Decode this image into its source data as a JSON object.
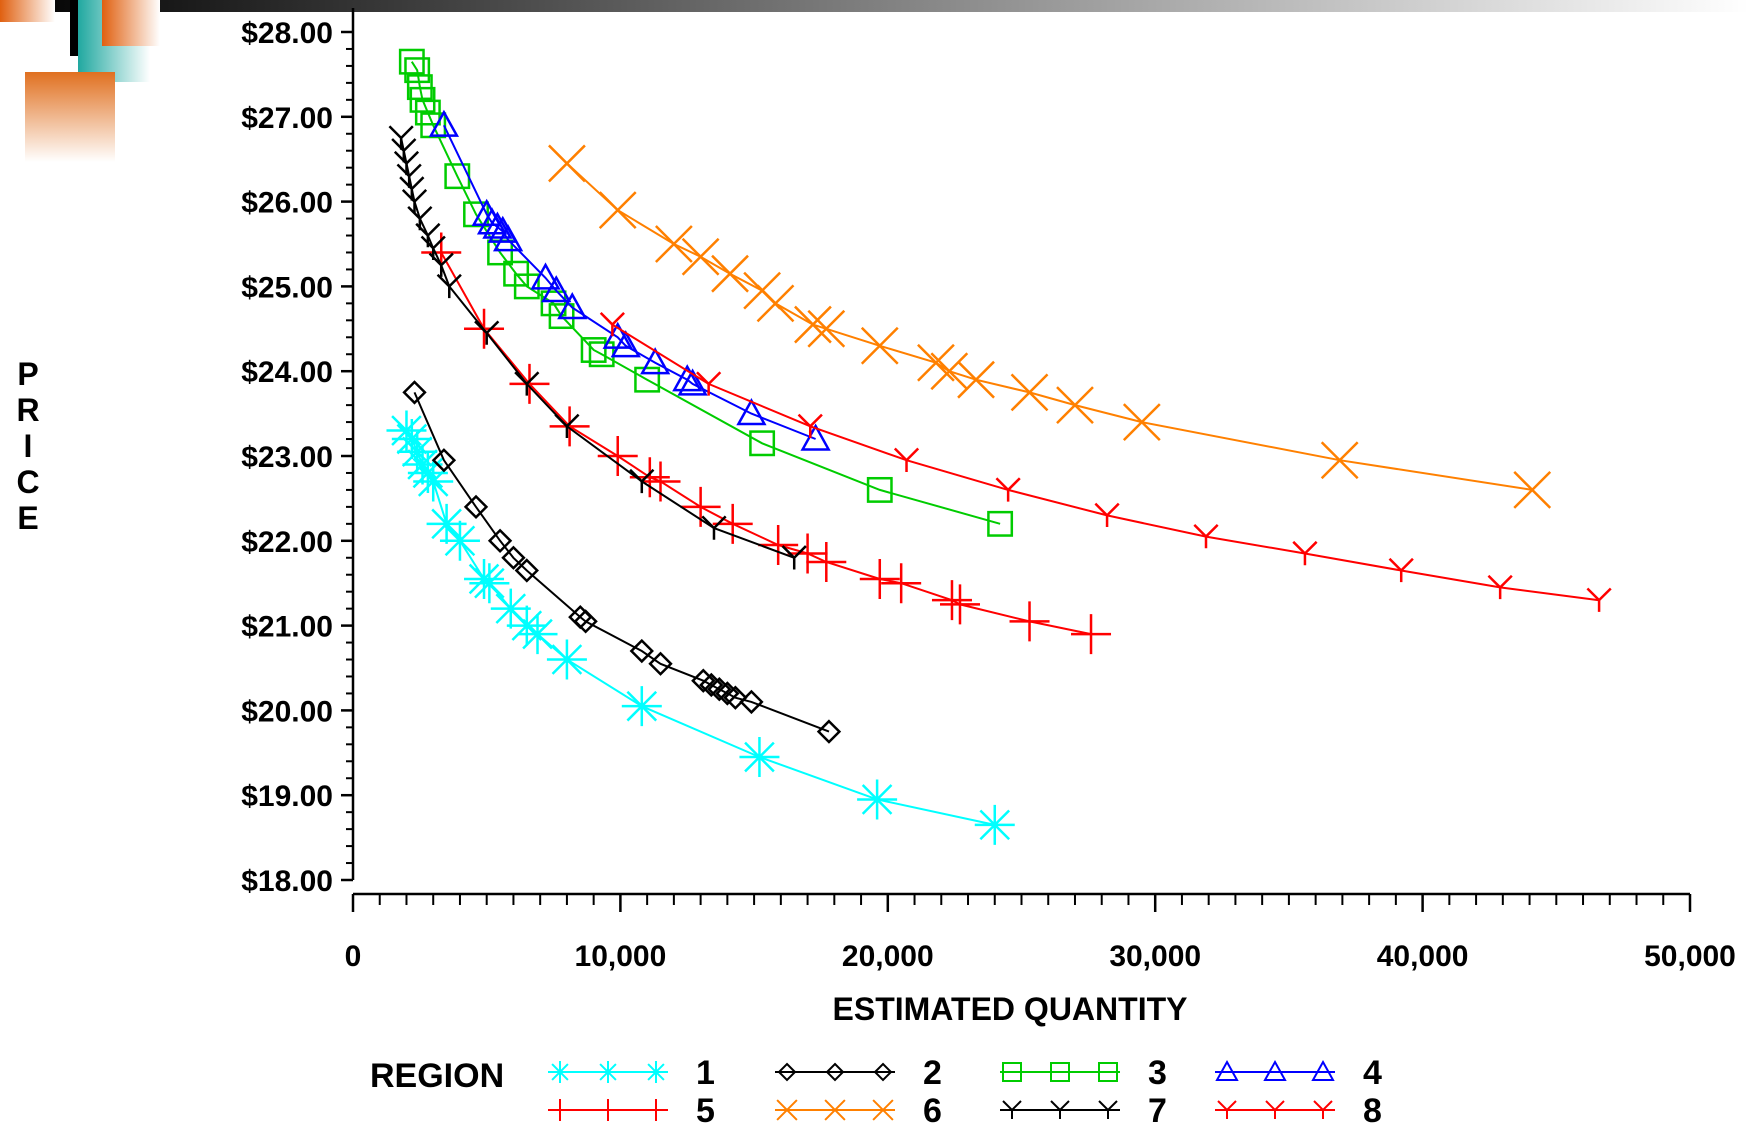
{
  "chart_data": {
    "type": "line",
    "title": "",
    "xlabel": "ESTIMATED QUANTITY",
    "ylabel": "PRICE",
    "xlim": [
      0,
      50000
    ],
    "ylim": [
      18,
      28
    ],
    "xticks": [
      0,
      10000,
      20000,
      30000,
      40000,
      50000
    ],
    "xtick_labels": [
      "0",
      "10,000",
      "20,000",
      "30,000",
      "40,000",
      "50,000"
    ],
    "yticks": [
      18,
      19,
      20,
      21,
      22,
      23,
      24,
      25,
      26,
      27,
      28
    ],
    "ytick_labels": [
      "$18.00",
      "$19.00",
      "$20.00",
      "$21.00",
      "$22.00",
      "$23.00",
      "$24.00",
      "$25.00",
      "$26.00",
      "$27.00",
      "$28.00"
    ],
    "grid": false,
    "legend": {
      "title": "REGION",
      "placement": "bottom"
    },
    "series": [
      {
        "name": "1",
        "color": "#00FFFF",
        "marker": "asterisk",
        "x": [
          2000,
          2200,
          2400,
          2600,
          2800,
          3000,
          3500,
          4000,
          4900,
          5100,
          5900,
          6500,
          6900,
          8000,
          10800,
          15200,
          19600,
          24000
        ],
        "y": [
          23.3,
          23.2,
          23.05,
          22.9,
          22.8,
          22.7,
          22.2,
          22.0,
          21.55,
          21.5,
          21.2,
          21.0,
          20.9,
          20.6,
          20.05,
          19.45,
          18.95,
          18.65
        ]
      },
      {
        "name": "2",
        "color": "#000000",
        "marker": "diamond",
        "x": [
          2300,
          3400,
          4600,
          5500,
          6000,
          6500,
          8500,
          8700,
          10800,
          11500,
          13100,
          13400,
          13700,
          14000,
          14300,
          14900,
          17800
        ],
        "y": [
          23.75,
          22.95,
          22.4,
          22.0,
          21.8,
          21.65,
          21.1,
          21.05,
          20.7,
          20.55,
          20.35,
          20.3,
          20.25,
          20.2,
          20.15,
          20.1,
          19.75
        ]
      },
      {
        "name": "3",
        "color": "#00CC00",
        "marker": "square",
        "x": [
          2200,
          2400,
          2500,
          2600,
          2800,
          3000,
          3900,
          4600,
          5500,
          6100,
          6500,
          7500,
          7800,
          9000,
          9300,
          11000,
          15300,
          19700,
          24200
        ],
        "y": [
          27.65,
          27.55,
          27.35,
          27.2,
          27.05,
          26.9,
          26.3,
          25.85,
          25.4,
          25.15,
          25.0,
          24.8,
          24.65,
          24.25,
          24.2,
          23.9,
          23.15,
          22.6,
          22.2
        ]
      },
      {
        "name": "4",
        "color": "#0000FF",
        "marker": "triangle",
        "x": [
          3400,
          5000,
          5200,
          5400,
          5600,
          5800,
          7200,
          7600,
          8200,
          9900,
          10200,
          11300,
          12500,
          12700,
          14900,
          17300
        ],
        "y": [
          26.9,
          25.85,
          25.75,
          25.7,
          25.65,
          25.55,
          25.1,
          24.95,
          24.75,
          24.4,
          24.3,
          24.1,
          23.9,
          23.85,
          23.5,
          23.2
        ]
      },
      {
        "name": "5",
        "color": "#FF0000",
        "marker": "plus",
        "x": [
          3300,
          4900,
          6600,
          8100,
          9900,
          11100,
          11500,
          13000,
          14200,
          15900,
          17000,
          17700,
          19700,
          20500,
          22400,
          22700,
          25300,
          27600
        ],
        "y": [
          25.4,
          24.5,
          23.85,
          23.35,
          23.0,
          22.75,
          22.7,
          22.4,
          22.2,
          21.95,
          21.85,
          21.75,
          21.55,
          21.5,
          21.3,
          21.25,
          21.05,
          20.9
        ]
      },
      {
        "name": "6",
        "color": "#FF8000",
        "marker": "x",
        "x": [
          8000,
          9900,
          12000,
          13000,
          14100,
          15300,
          15800,
          17200,
          17700,
          19700,
          21800,
          22300,
          23300,
          25300,
          27000,
          29500,
          36900,
          44100
        ],
        "y": [
          26.45,
          25.9,
          25.5,
          25.35,
          25.15,
          24.95,
          24.8,
          24.55,
          24.5,
          24.3,
          24.1,
          24.0,
          23.9,
          23.75,
          23.6,
          23.4,
          22.95,
          22.6
        ]
      },
      {
        "name": "7",
        "color": "#000000",
        "marker": "tri-down",
        "x": [
          1800,
          1900,
          2000,
          2100,
          2200,
          2300,
          2500,
          2800,
          3000,
          3300,
          3600,
          5000,
          6500,
          8000,
          10800,
          13500,
          16500
        ],
        "y": [
          26.75,
          26.6,
          26.45,
          26.3,
          26.15,
          26.0,
          25.8,
          25.6,
          25.45,
          25.25,
          25.0,
          24.45,
          23.85,
          23.35,
          22.7,
          22.15,
          21.8
        ]
      },
      {
        "name": "8",
        "color": "#FF0000",
        "marker": "tri-down",
        "x": [
          9700,
          13300,
          17100,
          20700,
          24500,
          28200,
          31900,
          35600,
          39200,
          42900,
          46600
        ],
        "y": [
          24.55,
          23.85,
          23.35,
          22.95,
          22.6,
          22.3,
          22.05,
          21.85,
          21.65,
          21.45,
          21.3
        ]
      }
    ]
  }
}
